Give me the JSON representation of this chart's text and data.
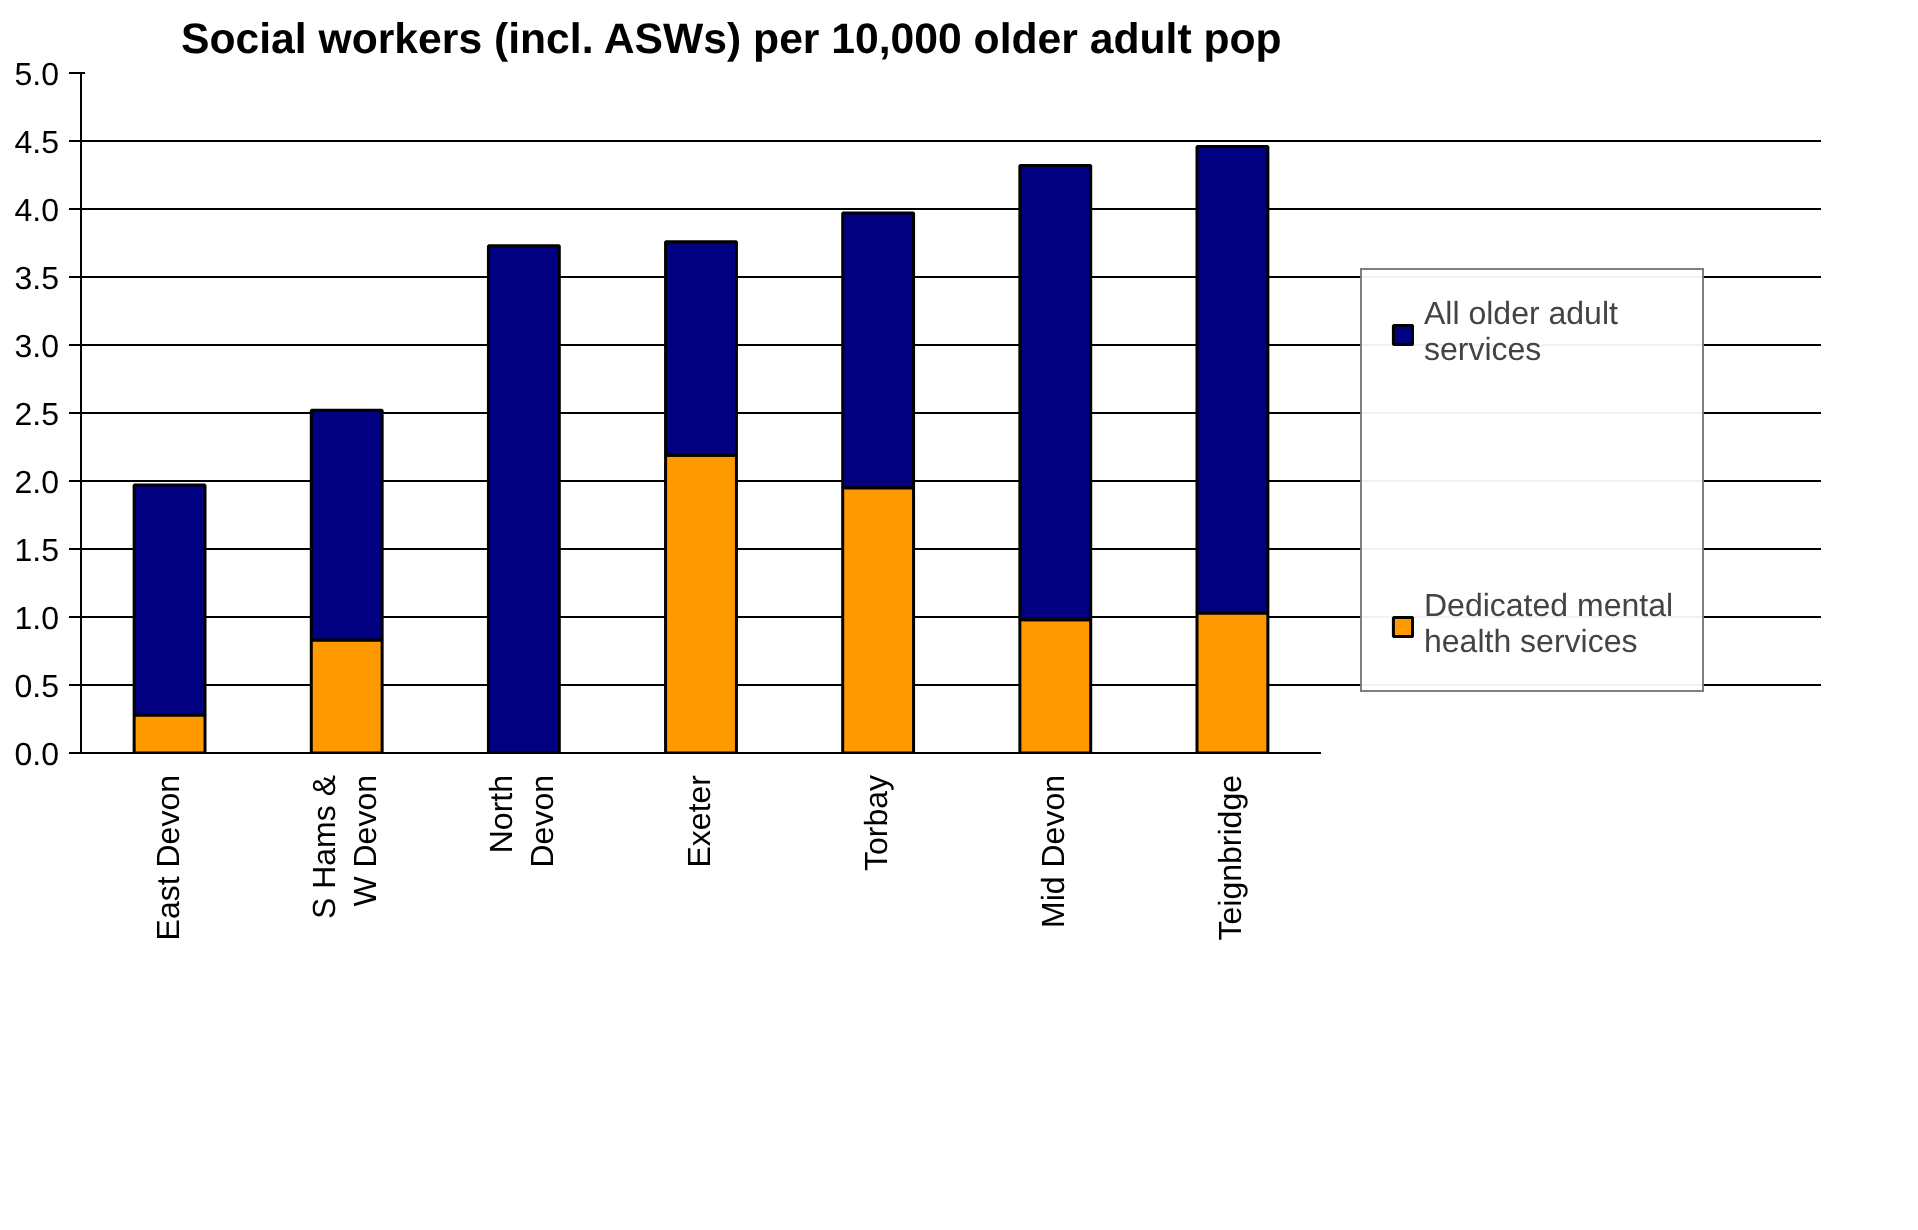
{
  "chart_data": {
    "type": "bar",
    "title": "Social workers (incl. ASWs) per 10,000 older adult pop",
    "categories": [
      "East Devon",
      "S Hams &\nW Devon",
      "North\nDevon",
      "Exeter",
      "Torbay",
      "Mid Devon",
      "Teignbridge"
    ],
    "stacked": true,
    "series": [
      {
        "name": "Dedicated mental health services",
        "color": "#ff9900",
        "values": [
          0.28,
          0.83,
          0,
          2.19,
          1.95,
          0.98,
          1.03
        ]
      },
      {
        "name": "All older adult services",
        "color": "#000080",
        "values": [
          1.69,
          1.69,
          3.73,
          1.57,
          2.02,
          3.34,
          3.43
        ]
      }
    ],
    "ylim": [
      0,
      5.0
    ],
    "yticks": [
      {
        "value": 0,
        "label": "0.0"
      },
      {
        "value": 0.5,
        "label": "0.5"
      },
      {
        "value": 1,
        "label": "1.0"
      },
      {
        "value": 1.5,
        "label": "1.5"
      },
      {
        "value": 2,
        "label": "2.0"
      },
      {
        "value": 2.5,
        "label": "2.5"
      },
      {
        "value": 3,
        "label": "3.0"
      },
      {
        "value": 3.5,
        "label": "3.5"
      },
      {
        "value": 4,
        "label": "4.0"
      },
      {
        "value": 4.5,
        "label": "4.5"
      },
      {
        "value": 5,
        "label": "5.0"
      }
    ],
    "grid": "y",
    "legend": "right"
  }
}
